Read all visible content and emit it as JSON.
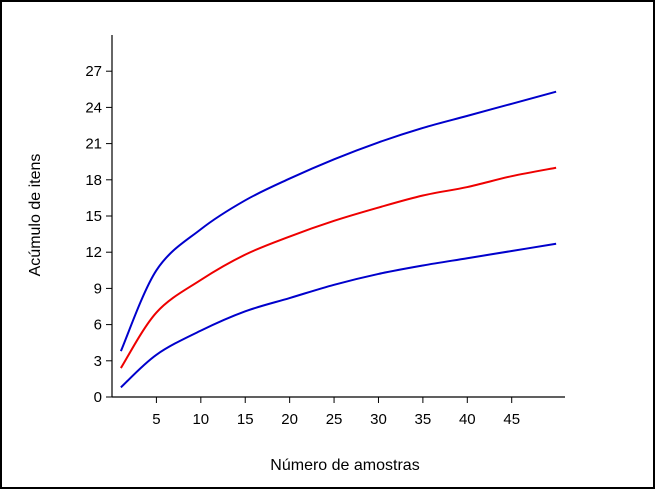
{
  "chart_data": {
    "type": "line",
    "title": "",
    "xlabel": "Número de amostras",
    "ylabel": "Acúmulo de itens",
    "xlim": [
      0,
      51
    ],
    "ylim": [
      0,
      30
    ],
    "xticks": [
      5,
      10,
      15,
      20,
      25,
      30,
      35,
      40,
      45
    ],
    "yticks": [
      0,
      3,
      6,
      9,
      12,
      15,
      18,
      21,
      24,
      27
    ],
    "grid": false,
    "legend": "none",
    "x": [
      1,
      5,
      10,
      15,
      20,
      25,
      30,
      35,
      40,
      45,
      50
    ],
    "series": [
      {
        "color": "#0000cc",
        "values": [
          3.8,
          10.5,
          13.9,
          16.3,
          18.1,
          19.7,
          21.1,
          22.3,
          23.3,
          24.3,
          25.3
        ]
      },
      {
        "color": "#ee0000",
        "values": [
          2.4,
          7.0,
          9.7,
          11.8,
          13.3,
          14.6,
          15.7,
          16.7,
          17.4,
          18.3,
          19.0
        ]
      },
      {
        "color": "#0000cc",
        "values": [
          0.8,
          3.5,
          5.5,
          7.1,
          8.2,
          9.3,
          10.2,
          10.9,
          11.5,
          12.1,
          12.7
        ]
      }
    ]
  }
}
